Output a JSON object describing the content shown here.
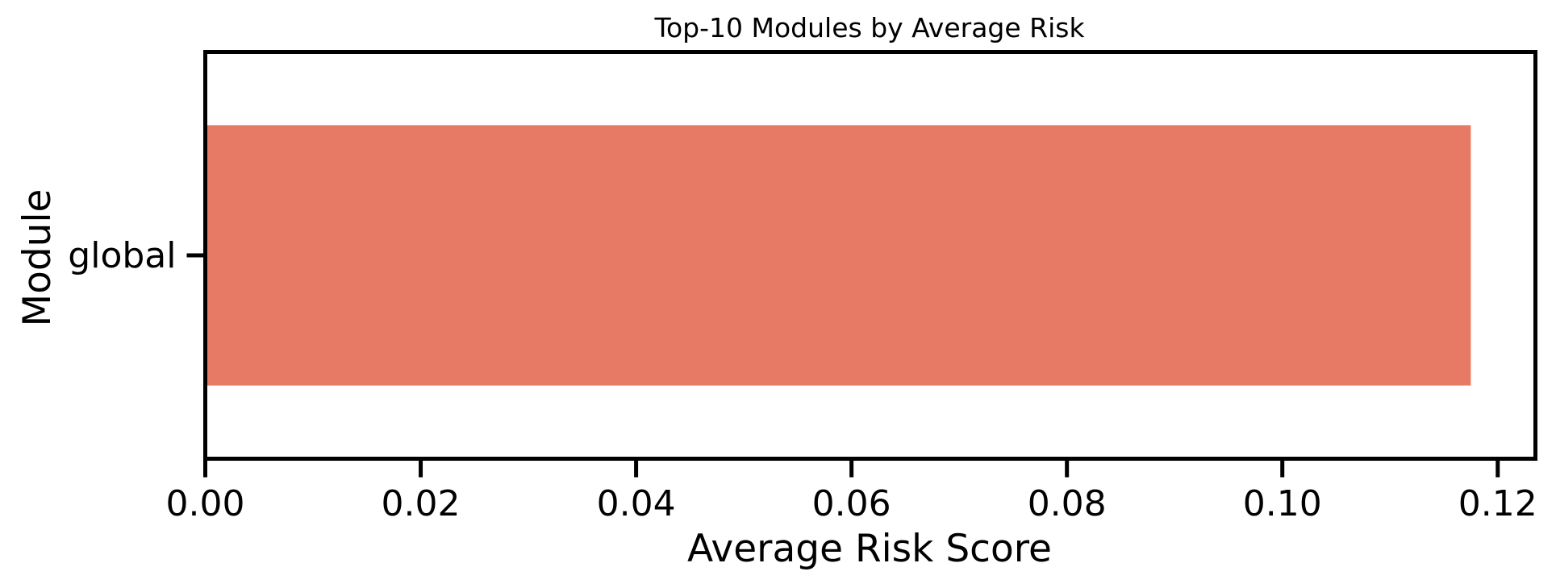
{
  "chart_data": {
    "type": "bar",
    "orientation": "horizontal",
    "title": "Top-10 Modules by Average Risk",
    "xlabel": "Average Risk Score",
    "ylabel": "Module",
    "categories": [
      "global"
    ],
    "values": [
      0.1175
    ],
    "xlim": [
      0,
      0.1235
    ],
    "xticks": [
      0.0,
      0.02,
      0.04,
      0.06,
      0.08,
      0.1,
      0.12
    ],
    "xtick_labels": [
      "0.00",
      "0.02",
      "0.04",
      "0.06",
      "0.08",
      "0.10",
      "0.12"
    ],
    "grid": false,
    "legend": "none",
    "bar_color": "#e67a64"
  }
}
